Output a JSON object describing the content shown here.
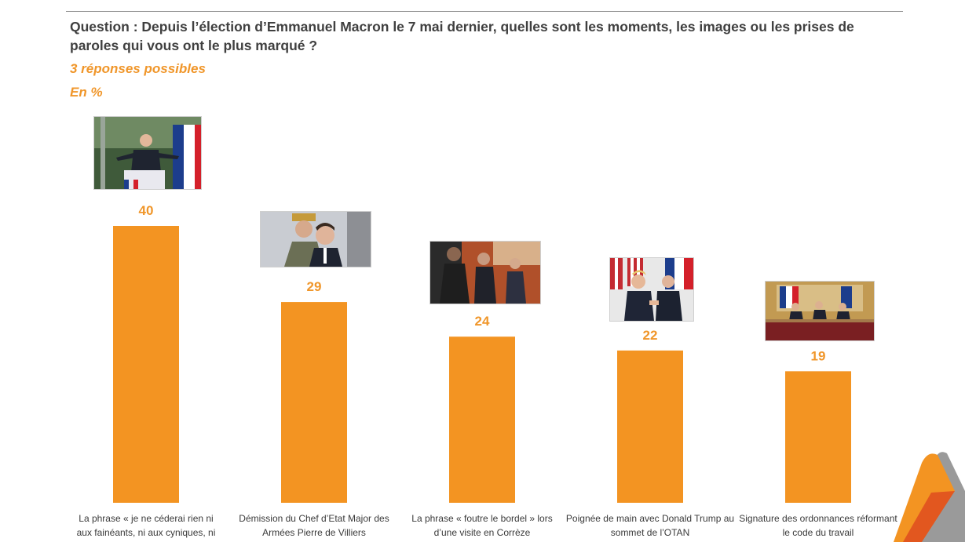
{
  "header": {
    "question": "Question : Depuis l’élection d’Emmanuel Macron le 7 mai dernier, quelles sont les moments, les images ou les prises de paroles qui vous ont le plus marqué ?",
    "subtitle_responses": "3 réponses possibles",
    "subtitle_unit": "En  %"
  },
  "colors": {
    "bar": "#f39422",
    "value_label": "#f0962a",
    "category_text": "#3a3a3a",
    "question_text": "#404040"
  },
  "chart_data": {
    "type": "bar",
    "categories": [
      "La phrase « je ne céderai rien ni aux fainéants, ni aux cyniques, ni aux",
      "Démission du Chef d’Etat Major des Armées Pierre de Villiers",
      "La phrase « foutre le bordel » lors d’une visite en Corrèze",
      "Poignée de main avec Donald Trump au sommet de l’OTAN",
      "Signature des ordonnances réformant le code du travail"
    ],
    "values": [
      40,
      29,
      24,
      22,
      19
    ],
    "ylim": [
      0,
      40
    ],
    "grid": false,
    "photos": [
      "macron-podium-photo",
      "villiers-macron-photo",
      "correze-visit-photo",
      "trump-handshake-photo",
      "ordonnances-signing-photo"
    ]
  }
}
